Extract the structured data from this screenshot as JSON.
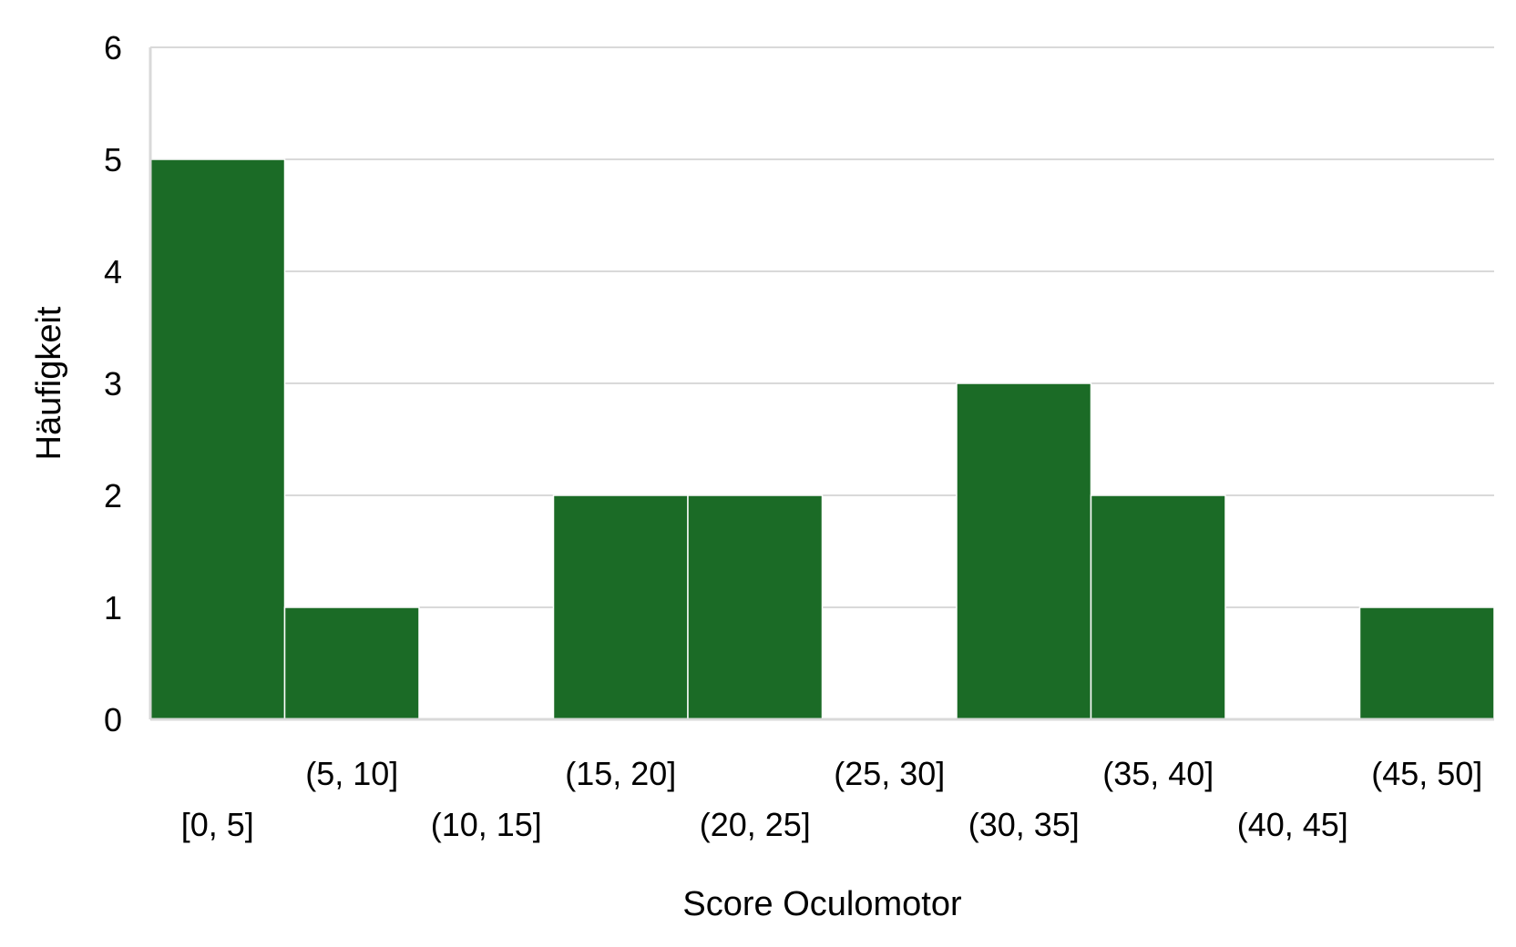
{
  "chart_data": {
    "type": "bar",
    "title": "",
    "xlabel": "Score Oculomotor",
    "ylabel": "Häufigkeit",
    "categories": [
      "[0, 5]",
      "(5, 10]",
      "(10, 15]",
      "(15, 20]",
      "(20, 25]",
      "(25, 30]",
      "(30, 35]",
      "(35, 40]",
      "(40, 45]",
      "(45, 50]"
    ],
    "values": [
      5,
      1,
      0,
      2,
      2,
      0,
      3,
      2,
      0,
      1
    ],
    "ylim": [
      0,
      6
    ],
    "yticks": [
      "0",
      "1",
      "2",
      "3",
      "4",
      "5",
      "6"
    ],
    "grid": true,
    "bar_color": "#1b6b26",
    "grid_color": "#d9d9d9"
  }
}
